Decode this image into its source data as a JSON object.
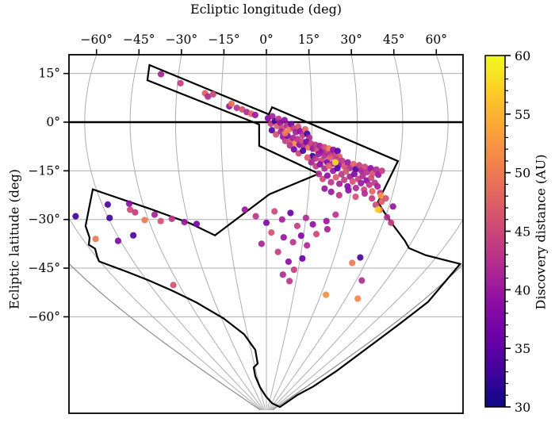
{
  "figure": {
    "top_axis_title": "Ecliptic longitude (deg)",
    "left_axis_title": "Ecliptic latitude (deg)",
    "colorbar_title": "Discovery distance (AU)"
  },
  "colors": {
    "frame": "#000000",
    "grid": "#adadad",
    "grid_outer": "#8c8c8c",
    "ecliptic_line": "#000000",
    "footprint_outline": "#000000",
    "background": "#ffffff",
    "plasma_stops": [
      "#0d0887",
      "#41049d",
      "#6a00a8",
      "#8f0da4",
      "#b12a90",
      "#cc4778",
      "#e16462",
      "#f2844b",
      "#fca636",
      "#fcce25",
      "#f0f921"
    ]
  },
  "chart_data": {
    "type": "scatter",
    "title": "",
    "xlabel": "Ecliptic longitude (deg)",
    "ylabel": "Ecliptic latitude (deg)",
    "projection": "sinusoidal centered on south ecliptic pole",
    "x_ticks_deg": [
      -60,
      -45,
      -30,
      -15,
      0,
      15,
      30,
      45,
      60
    ],
    "x_tick_labels": [
      "−60°",
      "−45°",
      "−30°",
      "−15°",
      "0°",
      "15°",
      "30°",
      "45°",
      "60°"
    ],
    "y_ticks_deg": [
      15,
      0,
      -15,
      -30,
      -45,
      -60
    ],
    "y_tick_labels": [
      "15°",
      "0°",
      "−15°",
      "−30°",
      "−45°",
      "−60°"
    ],
    "grid": {
      "meridians_deg": [
        -90,
        -75,
        -60,
        -45,
        -30,
        -15,
        0,
        15,
        30,
        45,
        60,
        75,
        90
      ],
      "parallels_deg": [
        15,
        -15,
        -30,
        -45,
        -60
      ],
      "on": true
    },
    "ecliptic_line_lat": 0,
    "colorbar": {
      "label": "Discovery distance (AU)",
      "min": 30,
      "max": 60,
      "major_ticks": [
        30,
        35,
        40,
        45,
        50,
        55,
        60
      ],
      "major_tick_labels": [
        "30",
        "35",
        "40",
        "45",
        "50",
        "55",
        "60"
      ],
      "minor_step": 1,
      "colormap": "plasma",
      "orientation": "vertical",
      "position": "right"
    },
    "footprint_outline_deg": [
      [
        -40.5,
        17.6
      ],
      [
        0.8,
        2.4
      ],
      [
        1.9,
        4.6
      ],
      [
        44.4,
        -12.0
      ],
      [
        40.5,
        -24.6
      ],
      [
        44.0,
        -27.8
      ],
      [
        49.6,
        -32.0
      ],
      [
        57.0,
        -36.6
      ],
      [
        60.4,
        -38.8
      ],
      [
        69.7,
        -41.0
      ],
      [
        79.2,
        -42.4
      ],
      [
        88.5,
        -43.7
      ],
      [
        94.0,
        -55.4
      ],
      [
        94.3,
        -62.9
      ],
      [
        95.9,
        -70.2
      ],
      [
        100.5,
        -76.6
      ],
      [
        104.5,
        -81.5
      ],
      [
        99.3,
        -84.1
      ],
      [
        116.0,
        -87.8
      ],
      [
        31.0,
        -86.6
      ],
      [
        -2.7,
        -84.4
      ],
      [
        -14.5,
        -81.7
      ],
      [
        -18.1,
        -78.3
      ],
      [
        -16.8,
        -75.6
      ],
      [
        -10.7,
        -74.4
      ],
      [
        -10.8,
        -70.2
      ],
      [
        -17.6,
        -65.4
      ],
      [
        -28.7,
        -60.5
      ],
      [
        -40.8,
        -55.6
      ],
      [
        -50.2,
        -52.0
      ],
      [
        -58.8,
        -48.8
      ],
      [
        -65.9,
        -46.3
      ],
      [
        -72.2,
        -44.1
      ],
      [
        -75.4,
        -42.9
      ],
      [
        -74.7,
        -41.7
      ],
      [
        -72.8,
        -39.0
      ],
      [
        -74.2,
        -37.8
      ],
      [
        -71.8,
        -35.6
      ],
      [
        -70.4,
        -32.0
      ],
      [
        -61.3,
        -20.7
      ],
      [
        -42.8,
        -26.8
      ],
      [
        -29.4,
        -31.2
      ],
      [
        -20.7,
        -34.9
      ],
      [
        1.1,
        -22.2
      ],
      [
        18.0,
        -15.9
      ],
      [
        -2.4,
        -7.3
      ],
      [
        -2.4,
        -0.7
      ],
      [
        -40.3,
        12.9
      ]
    ],
    "points_format": [
      "ecliptic_longitude_deg",
      "ecliptic_latitude_deg",
      "discovery_distance_au"
    ],
    "points": [
      [
        -36,
        14.8,
        41
      ],
      [
        -29,
        12.0,
        44
      ],
      [
        -20.5,
        8.9,
        47
      ],
      [
        -19.5,
        7.9,
        42
      ],
      [
        -17.8,
        8.6,
        45
      ],
      [
        -12.3,
        4.9,
        40
      ],
      [
        -11.6,
        5.7,
        49
      ],
      [
        -9.8,
        4.4,
        43
      ],
      [
        -8,
        3.9,
        46
      ],
      [
        -6.5,
        3.1,
        42
      ],
      [
        -5,
        2.6,
        48
      ],
      [
        -3.7,
        2.2,
        40
      ],
      [
        0.5,
        1.2,
        38
      ],
      [
        1.5,
        -0.5,
        44
      ],
      [
        2,
        1.8,
        41
      ],
      [
        2.8,
        0.3,
        33
      ],
      [
        3.5,
        -1.2,
        47
      ],
      [
        4,
        1.0,
        43
      ],
      [
        4.6,
        -0.2,
        40
      ],
      [
        5.3,
        -1.8,
        45
      ],
      [
        6,
        0.6,
        39
      ],
      [
        6.8,
        -1,
        42
      ],
      [
        7.5,
        -2.3,
        50
      ],
      [
        8.2,
        -0.6,
        37
      ],
      [
        9,
        -1.9,
        44
      ],
      [
        9.7,
        -3.1,
        41
      ],
      [
        10.5,
        -1.4,
        46
      ],
      [
        11.2,
        -2.8,
        39
      ],
      [
        12,
        -4,
        43
      ],
      [
        12.8,
        -2.2,
        48
      ],
      [
        13.5,
        -3.6,
        33
      ],
      [
        14.2,
        -4.8,
        42
      ],
      [
        5.5,
        -4.5,
        40
      ],
      [
        6.3,
        -5.8,
        44
      ],
      [
        7,
        -4.2,
        38
      ],
      [
        8,
        -6,
        46
      ],
      [
        8.8,
        -4.9,
        41
      ],
      [
        9.5,
        -6.5,
        52
      ],
      [
        10.3,
        -5.2,
        43
      ],
      [
        11,
        -7,
        39
      ],
      [
        11.8,
        -5.9,
        45
      ],
      [
        12.5,
        -7.4,
        42
      ],
      [
        13.3,
        -6.1,
        37
      ],
      [
        14,
        -7.8,
        49
      ],
      [
        14.8,
        -6.6,
        44
      ],
      [
        15.5,
        -8.2,
        40
      ],
      [
        16.3,
        -7,
        43
      ],
      [
        17,
        -8.6,
        46
      ],
      [
        17.8,
        -7.3,
        41
      ],
      [
        18.5,
        -9,
        38
      ],
      [
        19.3,
        -7.7,
        45
      ],
      [
        20,
        -9.4,
        43
      ],
      [
        20.8,
        -8.1,
        50
      ],
      [
        21.5,
        -9.8,
        42
      ],
      [
        22.3,
        -8.5,
        39
      ],
      [
        23,
        -10.2,
        44
      ],
      [
        23.8,
        -8.9,
        35
      ],
      [
        24.5,
        -10.6,
        47
      ],
      [
        15.5,
        -10.5,
        32
      ],
      [
        16.5,
        -11.2,
        43
      ],
      [
        17.5,
        -9.8,
        40
      ],
      [
        18.5,
        -11.8,
        45
      ],
      [
        19.5,
        -10.4,
        42
      ],
      [
        20.5,
        -12.3,
        38
      ],
      [
        21.5,
        -10.9,
        47
      ],
      [
        22.5,
        -12.8,
        41
      ],
      [
        23.5,
        -11.4,
        44
      ],
      [
        24.5,
        -13.2,
        39
      ],
      [
        25.5,
        -11.9,
        43
      ],
      [
        26.5,
        -13.7,
        46
      ],
      [
        27.5,
        -12.4,
        40
      ],
      [
        28.5,
        -14.1,
        42
      ],
      [
        29.5,
        -12.9,
        48
      ],
      [
        30.5,
        -14.5,
        34
      ],
      [
        31.5,
        -13.3,
        44
      ],
      [
        32.5,
        -15,
        41
      ],
      [
        33.5,
        -13.8,
        45
      ],
      [
        34.5,
        -15.4,
        43
      ],
      [
        35.5,
        -14.2,
        39
      ],
      [
        36.5,
        -15.8,
        46
      ],
      [
        37.5,
        -14.6,
        42
      ],
      [
        38.5,
        -16.2,
        40
      ],
      [
        39.5,
        -15,
        44
      ],
      [
        1.8,
        -2.5,
        34
      ],
      [
        3.2,
        -3.8,
        46
      ],
      [
        4.8,
        -2.9,
        41
      ],
      [
        6.2,
        -3.4,
        50
      ],
      [
        7.8,
        -7.2,
        43
      ],
      [
        9.2,
        -8.4,
        37
      ],
      [
        10.8,
        -9.6,
        45
      ],
      [
        12.2,
        -8.8,
        33
      ],
      [
        13.8,
        -10.9,
        47
      ],
      [
        15.2,
        -12.4,
        41
      ],
      [
        16.8,
        -13.6,
        44
      ],
      [
        18.2,
        -13,
        39
      ],
      [
        19.8,
        -14.3,
        42
      ],
      [
        21.2,
        -13.5,
        48
      ],
      [
        22.8,
        -15,
        40
      ],
      [
        24.2,
        -14.2,
        35
      ],
      [
        25.8,
        -16.1,
        43
      ],
      [
        27.2,
        -15.2,
        46
      ],
      [
        28.8,
        -16.8,
        41
      ],
      [
        30.2,
        -16,
        38
      ],
      [
        31.8,
        -17.5,
        44
      ],
      [
        33.2,
        -16.6,
        42
      ],
      [
        34.8,
        -18,
        39
      ],
      [
        36.2,
        -17.2,
        45
      ],
      [
        37.8,
        -18.7,
        43
      ],
      [
        18,
        -16,
        42
      ],
      [
        19.5,
        -17.5,
        45
      ],
      [
        21,
        -16.5,
        39
      ],
      [
        22.5,
        -18.5,
        43
      ],
      [
        24,
        -17,
        47
      ],
      [
        25.5,
        -19,
        41
      ],
      [
        27,
        -17.8,
        44
      ],
      [
        28.5,
        -19.8,
        38
      ],
      [
        30,
        -18.3,
        46
      ],
      [
        31.5,
        -20.3,
        42
      ],
      [
        33,
        -18.8,
        40
      ],
      [
        34.5,
        -20.8,
        45
      ],
      [
        36,
        -19.3,
        43
      ],
      [
        37.5,
        -21.3,
        48
      ],
      [
        39,
        -19.8,
        41
      ],
      [
        40.5,
        -21.8,
        44
      ],
      [
        20.5,
        -20.5,
        40
      ],
      [
        23,
        -21.5,
        40
      ],
      [
        26,
        -22.5,
        43
      ],
      [
        29,
        -21,
        39
      ],
      [
        32,
        -23,
        46
      ],
      [
        35,
        -22,
        42
      ],
      [
        38,
        -23.5,
        44
      ],
      [
        41,
        -22.7,
        53
      ],
      [
        41.8,
        -24.5,
        47
      ],
      [
        40,
        -25.5,
        45
      ],
      [
        42,
        -27,
        49
      ],
      [
        23.3,
        -12.4,
        58
      ],
      [
        41.3,
        -27,
        57
      ],
      [
        -8,
        -27,
        40
      ],
      [
        -4,
        -29,
        43
      ],
      [
        0,
        -31,
        38
      ],
      [
        3,
        -27.5,
        45
      ],
      [
        6,
        -30,
        41
      ],
      [
        9,
        -28,
        36
      ],
      [
        12,
        -32,
        44
      ],
      [
        15,
        -29.5,
        42
      ],
      [
        18,
        -31.5,
        39
      ],
      [
        2,
        -34,
        46
      ],
      [
        7,
        -35.5,
        40
      ],
      [
        11,
        -37,
        43
      ],
      [
        -2,
        -37.5,
        41
      ],
      [
        5,
        -40,
        44
      ],
      [
        14,
        -35,
        38
      ],
      [
        17,
        -38,
        42
      ],
      [
        20,
        -34.5,
        45
      ],
      [
        23,
        -30.5,
        40
      ],
      [
        26,
        -28.5,
        43
      ],
      [
        24,
        -33,
        41
      ],
      [
        10,
        -43,
        39
      ],
      [
        13,
        -45.5,
        44
      ],
      [
        16,
        -42,
        36
      ],
      [
        8,
        -47,
        42
      ],
      [
        -58,
        -25.4,
        34
      ],
      [
        -50,
        -25.1,
        39
      ],
      [
        -50.5,
        -27,
        45
      ],
      [
        -59.5,
        -29.5,
        33
      ],
      [
        -49,
        -27.8,
        44
      ],
      [
        -46.5,
        -30.2,
        50
      ],
      [
        -61,
        -36.6,
        38
      ],
      [
        -42,
        -28.5,
        41
      ],
      [
        -40.5,
        -30.5,
        46
      ],
      [
        -36,
        -29.8,
        43
      ],
      [
        -31.5,
        -30.8,
        40
      ],
      [
        -27,
        -31.4,
        37
      ],
      [
        -69.7,
        -36,
        50
      ],
      [
        -53.6,
        -34.9,
        34
      ],
      [
        -72,
        -29,
        33
      ],
      [
        -48,
        -50.2,
        46
      ],
      [
        51.8,
        -54.4,
        51
      ],
      [
        47.8,
        -48.8,
        42
      ],
      [
        41.5,
        -41.7,
        34
      ],
      [
        39,
        -43.4,
        50
      ],
      [
        11.6,
        -49,
        43
      ],
      [
        45.7,
        -29.3,
        42
      ],
      [
        43,
        -23.5,
        46
      ],
      [
        46.5,
        -26,
        40
      ],
      [
        48,
        -31,
        44
      ],
      [
        32.8,
        -53.2,
        52
      ]
    ]
  }
}
